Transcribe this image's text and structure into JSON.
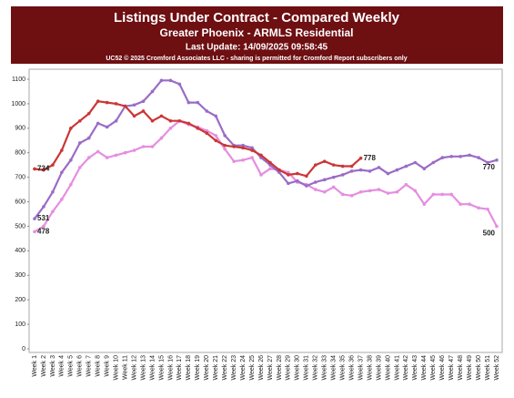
{
  "chart_data": {
    "type": "line",
    "title": "Listings Under Contract - Compared Weekly",
    "subtitle": "Greater Phoenix - ARMLS Residential",
    "update_text": "Last Update: 14/09/2025 09:58:45",
    "credit": "UC52 © 2025 Cromford Associates LLC - sharing is permitted for Cromford Report subscribers only",
    "categories": [
      "Week 1",
      "Week 2",
      "Week 3",
      "Week 4",
      "Week 5",
      "Week 6",
      "Week 7",
      "Week 8",
      "Week 9",
      "Week 10",
      "Week 11",
      "Week 12",
      "Week 13",
      "Week 14",
      "Week 15",
      "Week 16",
      "Week 17",
      "Week 18",
      "Week 19",
      "Week 20",
      "Week 21",
      "Week 22",
      "Week 23",
      "Week 24",
      "Week 25",
      "Week 26",
      "Week 27",
      "Week 28",
      "Week 29",
      "Week 30",
      "Week 31",
      "Week 32",
      "Week 33",
      "Week 34",
      "Week 35",
      "Week 36",
      "Week 37",
      "Week 38",
      "Week 39",
      "Week 40",
      "Week 41",
      "Week 42",
      "Week 43",
      "Week 44",
      "Week 45",
      "Week 46",
      "Week 47",
      "Week 48",
      "Week 49",
      "Week 50",
      "Week 51",
      "Week 52"
    ],
    "series": [
      {
        "color": "#e58ee0",
        "values": [
          478,
          500,
          560,
          610,
          670,
          740,
          780,
          805,
          780,
          790,
          800,
          810,
          825,
          825,
          860,
          900,
          930,
          915,
          905,
          890,
          870,
          815,
          765,
          770,
          780,
          710,
          735,
          730,
          720,
          680,
          670,
          650,
          640,
          660,
          630,
          625,
          640,
          645,
          650,
          635,
          640,
          670,
          645,
          590,
          630,
          630,
          630,
          590,
          590,
          575,
          570,
          500
        ]
      },
      {
        "color": "#9a6cc6",
        "values": [
          531,
          580,
          640,
          720,
          770,
          840,
          860,
          920,
          905,
          930,
          990,
          995,
          1010,
          1050,
          1095,
          1095,
          1080,
          1005,
          1005,
          970,
          950,
          870,
          830,
          830,
          820,
          780,
          750,
          720,
          675,
          685,
          665,
          680,
          690,
          700,
          710,
          725,
          730,
          725,
          740,
          715,
          730,
          745,
          760,
          735,
          760,
          780,
          785,
          785,
          790,
          780,
          760,
          770
        ]
      },
      {
        "color": "#cc3636",
        "values": [
          734,
          730,
          750,
          810,
          900,
          930,
          960,
          1010,
          1005,
          1000,
          990,
          950,
          970,
          930,
          950,
          930,
          930,
          920,
          900,
          880,
          850,
          830,
          825,
          820,
          810,
          790,
          760,
          730,
          710,
          715,
          705,
          750,
          765,
          750,
          745,
          745,
          778,
          null,
          null,
          null,
          null,
          null,
          null,
          null,
          null,
          null,
          null,
          null,
          null,
          null,
          null,
          null
        ]
      }
    ],
    "ylim": [
      0,
      1100
    ],
    "yticks": [
      0,
      100,
      200,
      300,
      400,
      500,
      600,
      700,
      800,
      900,
      1000,
      1100
    ],
    "grid": false
  }
}
